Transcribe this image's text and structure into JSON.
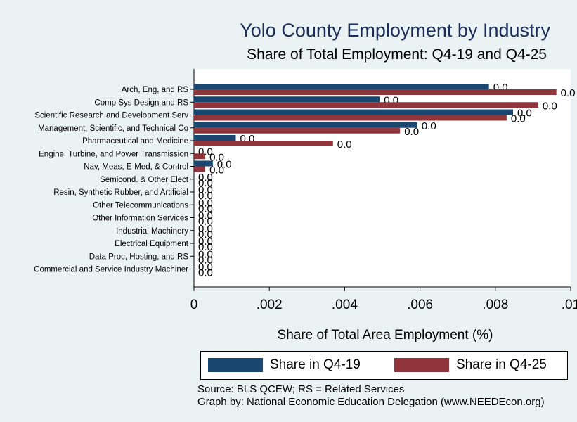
{
  "chart_data": {
    "type": "bar",
    "orientation": "horizontal",
    "title": "Yolo County Employment by Industry",
    "subtitle": "Share of Total Employment: Q4-19 and Q4-25",
    "xlabel": "Share of Total Area Employment (%)",
    "xlim": [
      0,
      0.01
    ],
    "xticks": [
      "0",
      ".002",
      ".004",
      ".006",
      ".008",
      ".01"
    ],
    "grid": false,
    "legend_position": "bottom",
    "categories": [
      "Arch, Eng, and RS",
      "Comp Sys Design and RS",
      "Scientific Research and Development Serv",
      "Management, Scientific, and Technical Co",
      "Pharmaceutical and Medicine",
      "Engine, Turbine, and Power Transmission",
      "Nav, Meas, E-Med, & Control",
      "Semicond. & Other Elect",
      "Resin, Synthetic Rubber, and Artificial",
      "Other Telecommunications",
      "Other Information Services",
      "Industrial Machinery",
      "Electrical Equipment",
      "Data Proc, Hosting, and RS",
      "Commercial and Service Industry Machiner"
    ],
    "series": [
      {
        "name": "Share in Q4-19",
        "color": "#1a476f",
        "values": [
          0.00783,
          0.00493,
          0.00847,
          0.00593,
          0.00111,
          0.0,
          0.0005,
          0,
          0,
          0,
          0,
          0,
          0,
          0,
          0
        ],
        "labels": [
          "0.0",
          "0.0",
          "0.0",
          "0.0",
          "0.0",
          "0.0",
          "0.0",
          "0.0",
          "0.0",
          "0.0",
          "0.0",
          "0.0",
          "0.0",
          "0.0",
          "0.0"
        ]
      },
      {
        "name": "Share in Q4-25",
        "color": "#90353b",
        "values": [
          0.00962,
          0.00914,
          0.0083,
          0.00547,
          0.00369,
          0.0003,
          0.0003,
          0,
          0,
          0,
          0,
          0,
          0,
          0,
          0
        ],
        "labels": [
          "0.0",
          "0.0",
          "0.0",
          "0.0",
          "0.0",
          "0.0",
          "0.0",
          "0.0",
          "0.0",
          "0.0",
          "0.0",
          "0.0",
          "0.0",
          "0.0",
          "0.0"
        ]
      }
    ]
  },
  "source_line1": "Source: BLS QCEW; RS = Related Services",
  "source_line2": "Graph by: National Economic Education Delegation (www.NEEDEcon.org)"
}
